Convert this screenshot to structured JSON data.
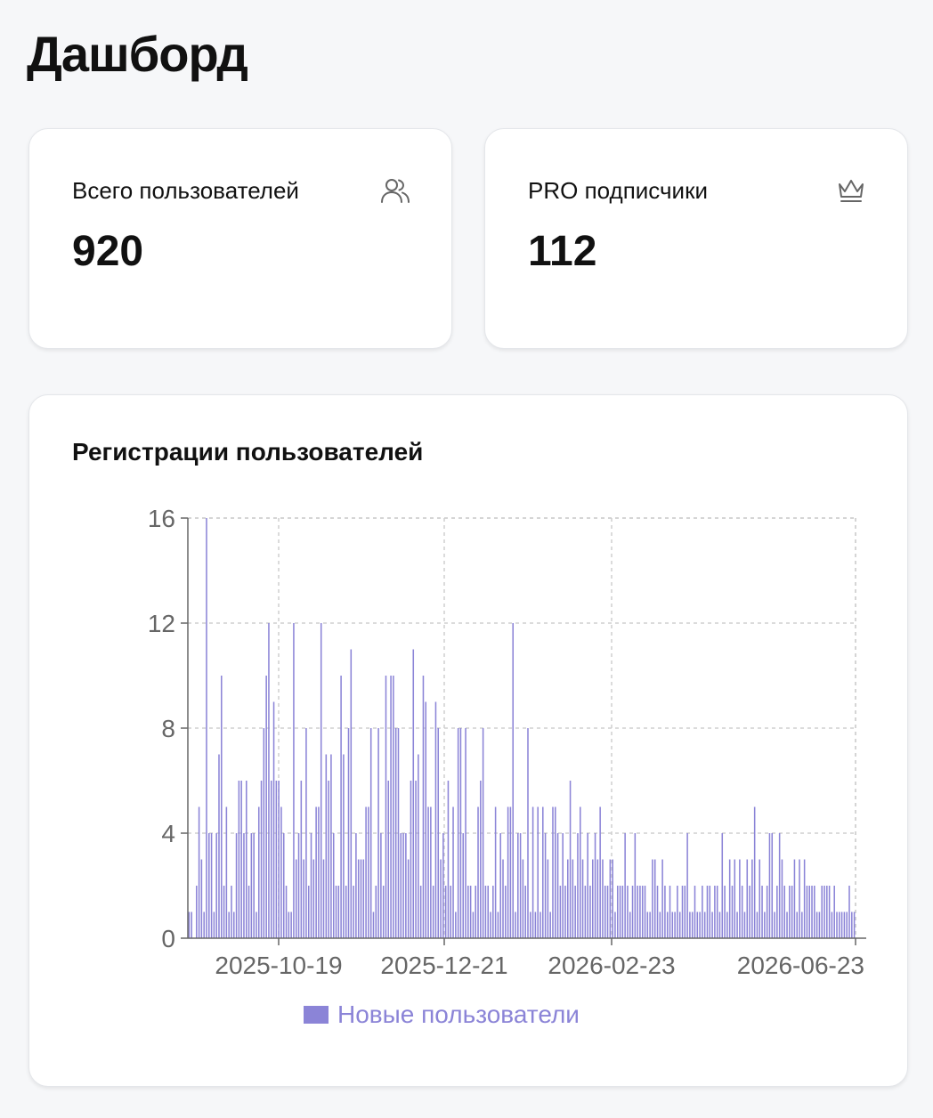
{
  "page": {
    "title": "Дашборд"
  },
  "stats": [
    {
      "label": "Всего пользователей",
      "value": "920",
      "icon": "users-icon"
    },
    {
      "label": "PRO подписчики",
      "value": "112",
      "icon": "crown-icon"
    }
  ],
  "chart": {
    "title": "Регистрации пользователей"
  },
  "chart_data": {
    "type": "bar",
    "title": "Регистрации пользователей",
    "xlabel": "",
    "ylabel": "",
    "x_tick_labels": [
      "2025-10-19",
      "2025-12-21",
      "2026-02-23",
      "2026-06-23"
    ],
    "y_tick_labels": [
      "0",
      "4",
      "8",
      "12",
      "16"
    ],
    "ylim": [
      0,
      16
    ],
    "grid": true,
    "legend": "bottom",
    "series": [
      {
        "name": "Новые пользователи",
        "color": "#8b84d7",
        "values": [
          1,
          1,
          0,
          2,
          5,
          3,
          1,
          16,
          4,
          4,
          1,
          4,
          7,
          10,
          2,
          5,
          1,
          2,
          1,
          4,
          6,
          6,
          4,
          6,
          2,
          4,
          4,
          1,
          5,
          6,
          8,
          10,
          12,
          6,
          9,
          6,
          6,
          5,
          4,
          2,
          1,
          1,
          12,
          3,
          4,
          6,
          3,
          8,
          2,
          4,
          3,
          5,
          5,
          12,
          3,
          7,
          6,
          7,
          4,
          2,
          2,
          10,
          7,
          2,
          8,
          11,
          2,
          4,
          3,
          3,
          3,
          5,
          5,
          8,
          1,
          2,
          8,
          4,
          2,
          10,
          6,
          10,
          10,
          8,
          8,
          4,
          4,
          4,
          3,
          6,
          11,
          6,
          7,
          2,
          10,
          9,
          5,
          5,
          2,
          9,
          8,
          3,
          4,
          2,
          6,
          2,
          5,
          1,
          8,
          8,
          4,
          8,
          2,
          2,
          1,
          2,
          5,
          6,
          8,
          2,
          2,
          1,
          2,
          5,
          1,
          4,
          3,
          2,
          5,
          5,
          12,
          1,
          4,
          4,
          3,
          2,
          8,
          1,
          5,
          1,
          5,
          1,
          5,
          4,
          3,
          1,
          5,
          5,
          4,
          2,
          4,
          2,
          3,
          6,
          3,
          2,
          4,
          5,
          3,
          2,
          4,
          2,
          3,
          4,
          3,
          5,
          3,
          2,
          2,
          3,
          3,
          1,
          2,
          2,
          2,
          4,
          2,
          1,
          2,
          4,
          2,
          2,
          2,
          2,
          1,
          1,
          3,
          3,
          2,
          1,
          3,
          2,
          1,
          2,
          1,
          1,
          2,
          1,
          2,
          2,
          4,
          1,
          1,
          2,
          1,
          1,
          2,
          1,
          2,
          2,
          1,
          2,
          2,
          1,
          4,
          2,
          1,
          3,
          2,
          3,
          1,
          3,
          2,
          1,
          3,
          2,
          3,
          5,
          1,
          3,
          2,
          1,
          2,
          4,
          4,
          1,
          2,
          4,
          3,
          2,
          1,
          2,
          2,
          3,
          1,
          3,
          1,
          3,
          2,
          2,
          2,
          2,
          1,
          1,
          2,
          2,
          2,
          2,
          1,
          2,
          1,
          1,
          1,
          1,
          1,
          2,
          1,
          1
        ]
      }
    ]
  }
}
